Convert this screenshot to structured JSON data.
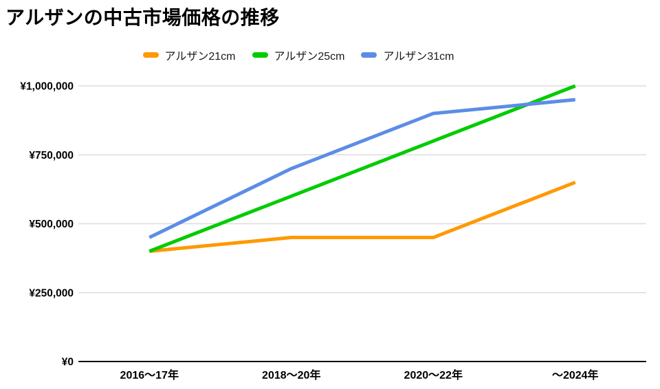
{
  "header": {
    "title": "アルザンの中古市場価格の推移"
  },
  "chart_data": {
    "type": "line",
    "title": "アルザンの中古市場価格の推移",
    "categories": [
      "2016〜17年",
      "2018〜20年",
      "2020〜22年",
      "〜2024年"
    ],
    "series": [
      {
        "name": "アルザン21cm",
        "color": "#FF9900",
        "values": [
          400000,
          450000,
          450000,
          650000
        ]
      },
      {
        "name": "アルザン25cm",
        "color": "#00CC00",
        "values": [
          400000,
          600000,
          800000,
          1000000
        ]
      },
      {
        "name": "アルザン31cm",
        "color": "#5C8DE6",
        "values": [
          450000,
          700000,
          900000,
          950000
        ]
      }
    ],
    "ylim": [
      0,
      1000000
    ],
    "yticks": [
      0,
      250000,
      500000,
      750000,
      1000000
    ],
    "ytick_labels": [
      "¥0",
      "¥250,000",
      "¥500,000",
      "¥750,000",
      "¥1,000,000"
    ],
    "xlabel": "",
    "ylabel": "",
    "grid": true,
    "legend_position": "top",
    "colors": {
      "gridline": "#DCDCDC",
      "axis": "#000000",
      "text": "#000000"
    }
  }
}
